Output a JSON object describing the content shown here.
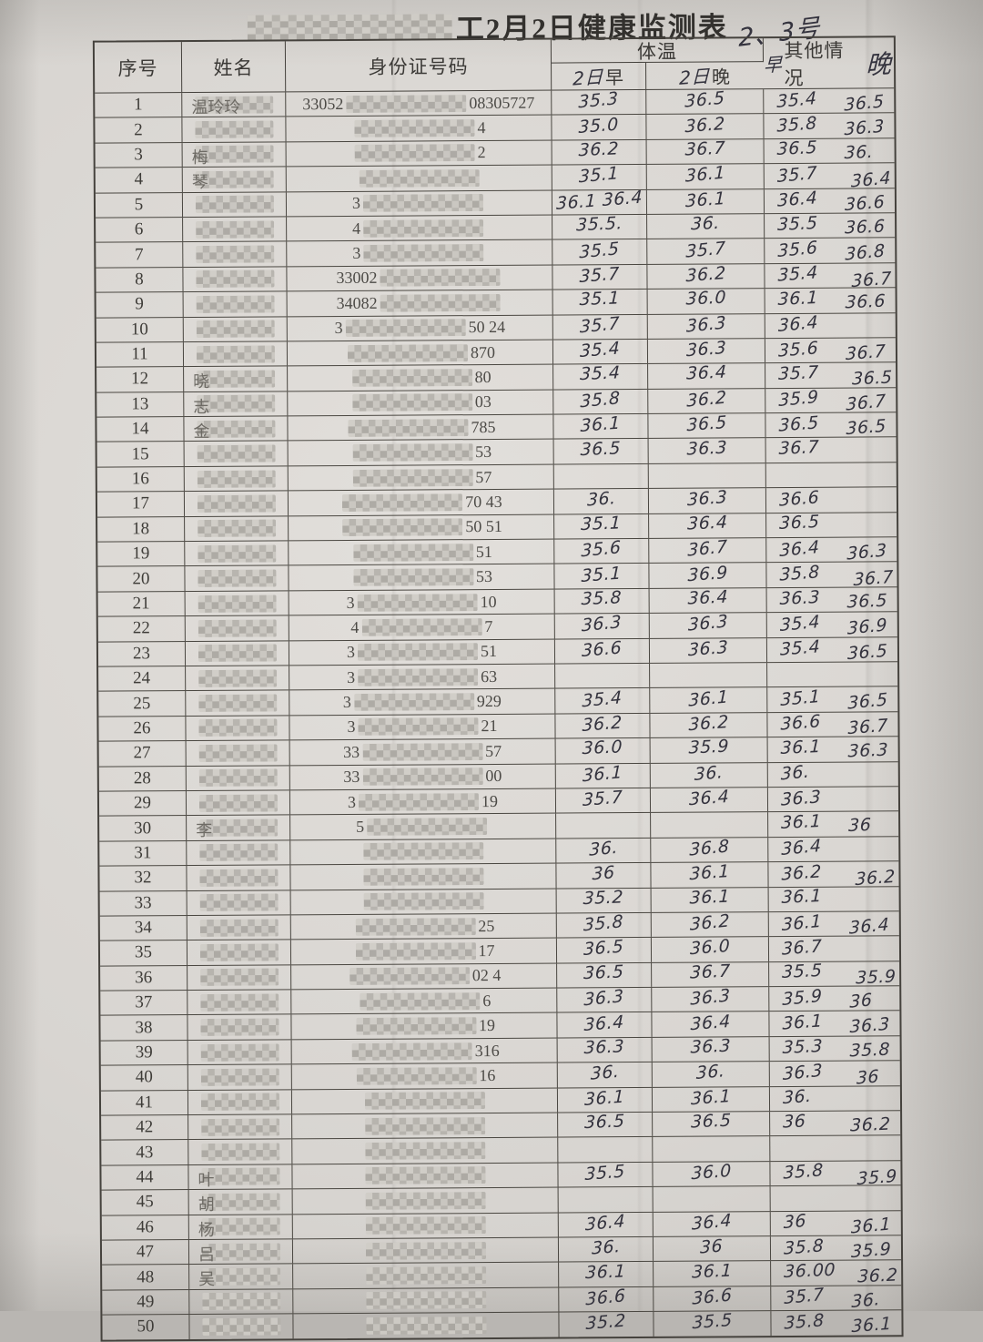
{
  "title": {
    "redacted_prefix": "redacted-company-name",
    "text": "工2月2日健康监测表"
  },
  "handwritten_note": "2、3号",
  "header": {
    "index": "序号",
    "name": "姓名",
    "id_number": "身份证号码",
    "temp_group": "体温",
    "am_hand_prefix": "2日",
    "am": "早",
    "pm_hand_prefix": "2日",
    "pm": "晚",
    "other_hand_left": "早",
    "other": "其他情况",
    "other_hand_right": "晚"
  },
  "rows": [
    {
      "no": "1",
      "name": "温玲玲",
      "id_pre": "33052",
      "id_suf": "08305727",
      "am": "35.3",
      "pm": "36.5",
      "o_am": "35.4",
      "o_pm": "36.5"
    },
    {
      "no": "2",
      "name": "",
      "id_pre": "",
      "id_suf": "4",
      "am": "35.0",
      "pm": "36.2",
      "o_am": "35.8",
      "o_pm": "36.3"
    },
    {
      "no": "3",
      "name": "梅",
      "id_pre": "",
      "id_suf": "2",
      "am": "36.2",
      "pm": "36.7",
      "o_am": "36.5",
      "o_pm": "36."
    },
    {
      "no": "4",
      "name": "琴",
      "id_pre": "",
      "id_suf": "",
      "am": "35.1",
      "pm": "36.1",
      "o_am": "35.7",
      "o_pm": "36.4"
    },
    {
      "no": "5",
      "name": "",
      "id_pre": "3",
      "id_suf": "",
      "am": "36.1 36.4",
      "pm": "36.1",
      "o_am": "36.4",
      "o_pm": "36.6"
    },
    {
      "no": "6",
      "name": "",
      "id_pre": "4",
      "id_suf": "",
      "am": "35.5.",
      "pm": "36.",
      "o_am": "35.5",
      "o_pm": "36.6"
    },
    {
      "no": "7",
      "name": "",
      "id_pre": "3",
      "id_suf": "",
      "am": "35.5",
      "pm": "35.7",
      "o_am": "35.6",
      "o_pm": "36.8"
    },
    {
      "no": "8",
      "name": "",
      "id_pre": "33002",
      "id_suf": "",
      "am": "35.7",
      "pm": "36.2",
      "o_am": "35.4",
      "o_pm": "36.7"
    },
    {
      "no": "9",
      "name": "",
      "id_pre": "34082",
      "id_suf": "",
      "am": "35.1",
      "pm": "36.0",
      "o_am": "36.1",
      "o_pm": "36.6"
    },
    {
      "no": "10",
      "name": "",
      "id_pre": "3",
      "id_suf": "50 24",
      "am": "35.7",
      "pm": "36.3",
      "o_am": "36.4",
      "o_pm": ""
    },
    {
      "no": "11",
      "name": "",
      "id_pre": "",
      "id_suf": "870",
      "am": "35.4",
      "pm": "36.3",
      "o_am": "35.6",
      "o_pm": "36.7"
    },
    {
      "no": "12",
      "name": "晓",
      "id_pre": "",
      "id_suf": "80",
      "am": "35.4",
      "pm": "36.4",
      "o_am": "35.7",
      "o_pm": "36.5"
    },
    {
      "no": "13",
      "name": "志",
      "id_pre": "",
      "id_suf": "03",
      "am": "35.8",
      "pm": "36.2",
      "o_am": "35.9",
      "o_pm": "36.7"
    },
    {
      "no": "14",
      "name": "金",
      "id_pre": "",
      "id_suf": "785",
      "am": "36.1",
      "pm": "36.5",
      "o_am": "36.5",
      "o_pm": "36.5"
    },
    {
      "no": "15",
      "name": "",
      "id_pre": "",
      "id_suf": "53",
      "am": "36.5",
      "pm": "36.3",
      "o_am": "36.7",
      "o_pm": ""
    },
    {
      "no": "16",
      "name": "",
      "id_pre": "",
      "id_suf": "57",
      "am": "",
      "pm": "",
      "o_am": "",
      "o_pm": ""
    },
    {
      "no": "17",
      "name": "",
      "id_pre": "",
      "id_suf": "70 43",
      "am": "36.",
      "pm": "36.3",
      "o_am": "36.6",
      "o_pm": ""
    },
    {
      "no": "18",
      "name": "",
      "id_pre": "",
      "id_suf": "50 51",
      "am": "35.1",
      "pm": "36.4",
      "o_am": "36.5",
      "o_pm": ""
    },
    {
      "no": "19",
      "name": "",
      "id_pre": "",
      "id_suf": "51",
      "am": "35.6",
      "pm": "36.7",
      "o_am": "36.4",
      "o_pm": "36.3"
    },
    {
      "no": "20",
      "name": "",
      "id_pre": "",
      "id_suf": "53",
      "am": "35.1",
      "pm": "36.9",
      "o_am": "35.8",
      "o_pm": "36.7"
    },
    {
      "no": "21",
      "name": "",
      "id_pre": "3",
      "id_suf": "10",
      "am": "35.8",
      "pm": "36.4",
      "o_am": "36.3",
      "o_pm": "36.5"
    },
    {
      "no": "22",
      "name": "",
      "id_pre": "4",
      "id_suf": "7",
      "am": "36.3",
      "pm": "36.3",
      "o_am": "35.4",
      "o_pm": "36.9"
    },
    {
      "no": "23",
      "name": "",
      "id_pre": "3",
      "id_suf": "51",
      "am": "36.6",
      "pm": "36.3",
      "o_am": "35.4",
      "o_pm": "36.5"
    },
    {
      "no": "24",
      "name": "",
      "id_pre": "3",
      "id_suf": "63",
      "am": "",
      "pm": "",
      "o_am": "",
      "o_pm": ""
    },
    {
      "no": "25",
      "name": "",
      "id_pre": "3",
      "id_suf": "929",
      "am": "35.4",
      "pm": "36.1",
      "o_am": "35.1",
      "o_pm": "36.5"
    },
    {
      "no": "26",
      "name": "",
      "id_pre": "3",
      "id_suf": "21",
      "am": "36.2",
      "pm": "36.2",
      "o_am": "36.6",
      "o_pm": "36.7"
    },
    {
      "no": "27",
      "name": "",
      "id_pre": "33",
      "id_suf": "57",
      "am": "36.0",
      "pm": "35.9",
      "o_am": "36.1",
      "o_pm": "36.3"
    },
    {
      "no": "28",
      "name": "",
      "id_pre": "33",
      "id_suf": "00",
      "am": "36.1",
      "pm": "36.",
      "o_am": "36.",
      "o_pm": ""
    },
    {
      "no": "29",
      "name": "",
      "id_pre": "3",
      "id_suf": "19",
      "am": "35.7",
      "pm": "36.4",
      "o_am": "36.3",
      "o_pm": ""
    },
    {
      "no": "30",
      "name": "李",
      "id_pre": "5",
      "id_suf": "",
      "am": "",
      "pm": "",
      "o_am": "36.1",
      "o_pm": "36"
    },
    {
      "no": "31",
      "name": "",
      "id_pre": "",
      "id_suf": "",
      "am": "36.",
      "pm": "36.8",
      "o_am": "36.4",
      "o_pm": ""
    },
    {
      "no": "32",
      "name": "",
      "id_pre": "",
      "id_suf": "",
      "am": "36",
      "pm": "36.1",
      "o_am": "36.2",
      "o_pm": "36.2"
    },
    {
      "no": "33",
      "name": "",
      "id_pre": "",
      "id_suf": "",
      "am": "35.2",
      "pm": "36.1",
      "o_am": "36.1",
      "o_pm": ""
    },
    {
      "no": "34",
      "name": "",
      "id_pre": "",
      "id_suf": "25",
      "am": "35.8",
      "pm": "36.2",
      "o_am": "36.1",
      "o_pm": "36.4"
    },
    {
      "no": "35",
      "name": "",
      "id_pre": "",
      "id_suf": "17",
      "am": "36.5",
      "pm": "36.0",
      "o_am": "36.7",
      "o_pm": ""
    },
    {
      "no": "36",
      "name": "",
      "id_pre": "",
      "id_suf": "02 4",
      "am": "36.5",
      "pm": "36.7",
      "o_am": "35.5",
      "o_pm": "35.9"
    },
    {
      "no": "37",
      "name": "",
      "id_pre": "",
      "id_suf": "6",
      "am": "36.3",
      "pm": "36.3",
      "o_am": "35.9",
      "o_pm": "36"
    },
    {
      "no": "38",
      "name": "",
      "id_pre": "",
      "id_suf": "19",
      "am": "36.4",
      "pm": "36.4",
      "o_am": "36.1",
      "o_pm": "36.3"
    },
    {
      "no": "39",
      "name": "",
      "id_pre": "",
      "id_suf": "316",
      "am": "36.3",
      "pm": "36.3",
      "o_am": "35.3",
      "o_pm": "35.8"
    },
    {
      "no": "40",
      "name": "",
      "id_pre": "",
      "id_suf": "16",
      "am": "36.",
      "pm": "36.",
      "o_am": "36.3",
      "o_pm": "36"
    },
    {
      "no": "41",
      "name": "",
      "id_pre": "",
      "id_suf": "",
      "am": "36.1",
      "pm": "36.1",
      "o_am": "36.",
      "o_pm": ""
    },
    {
      "no": "42",
      "name": "",
      "id_pre": "",
      "id_suf": "",
      "am": "36.5",
      "pm": "36.5",
      "o_am": "36",
      "o_pm": "36.2"
    },
    {
      "no": "43",
      "name": "",
      "id_pre": "",
      "id_suf": "",
      "am": "",
      "pm": "",
      "o_am": "",
      "o_pm": ""
    },
    {
      "no": "44",
      "name": "叶",
      "id_pre": "",
      "id_suf": "",
      "am": "35.5",
      "pm": "36.0",
      "o_am": "35.8",
      "o_pm": "35.9"
    },
    {
      "no": "45",
      "name": "胡",
      "id_pre": "",
      "id_suf": "",
      "am": "",
      "pm": "",
      "o_am": "",
      "o_pm": ""
    },
    {
      "no": "46",
      "name": "杨",
      "id_pre": "",
      "id_suf": "",
      "am": "36.4",
      "pm": "36.4",
      "o_am": "36",
      "o_pm": "36.1"
    },
    {
      "no": "47",
      "name": "吕",
      "id_pre": "",
      "id_suf": "",
      "am": "36.",
      "pm": "36",
      "o_am": "35.8",
      "o_pm": "35.9"
    },
    {
      "no": "48",
      "name": "吴",
      "id_pre": "",
      "id_suf": "",
      "am": "36.1",
      "pm": "36.1",
      "o_am": "36.00",
      "o_pm": "36.2"
    },
    {
      "no": "49",
      "name": "",
      "id_pre": "",
      "id_suf": "",
      "am": "36.6",
      "pm": "36.6",
      "o_am": "35.7",
      "o_pm": "36."
    },
    {
      "no": "50",
      "name": "",
      "id_pre": "",
      "id_suf": "",
      "am": "35.2",
      "pm": "35.5",
      "o_am": "35.8",
      "o_pm": "36.1"
    }
  ]
}
